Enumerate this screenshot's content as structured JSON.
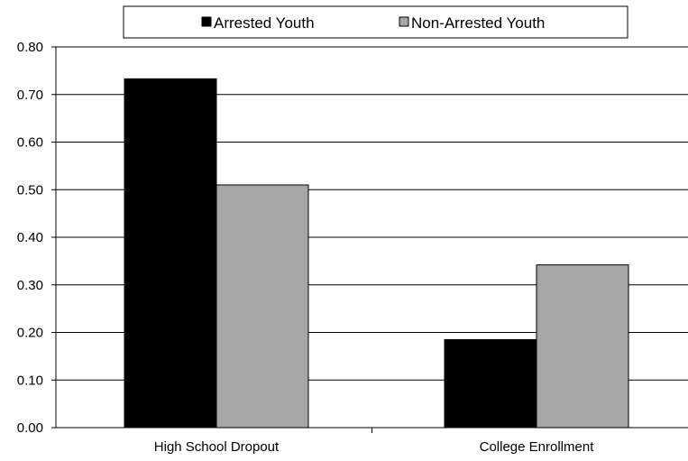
{
  "chart_data": {
    "type": "bar",
    "categories": [
      "High School Dropout",
      "College Enrollment"
    ],
    "series": [
      {
        "name": "Arrested Youth",
        "values": [
          0.733,
          0.185
        ],
        "color": "#000000"
      },
      {
        "name": "Non-Arrested Youth",
        "values": [
          0.51,
          0.342
        ],
        "color": "#a6a6a6"
      }
    ],
    "ylim": [
      0,
      0.8
    ],
    "yticks": [
      "0.00",
      "0.10",
      "0.20",
      "0.30",
      "0.40",
      "0.50",
      "0.60",
      "0.70",
      "0.80"
    ],
    "grid": true,
    "legend_position": "top"
  }
}
